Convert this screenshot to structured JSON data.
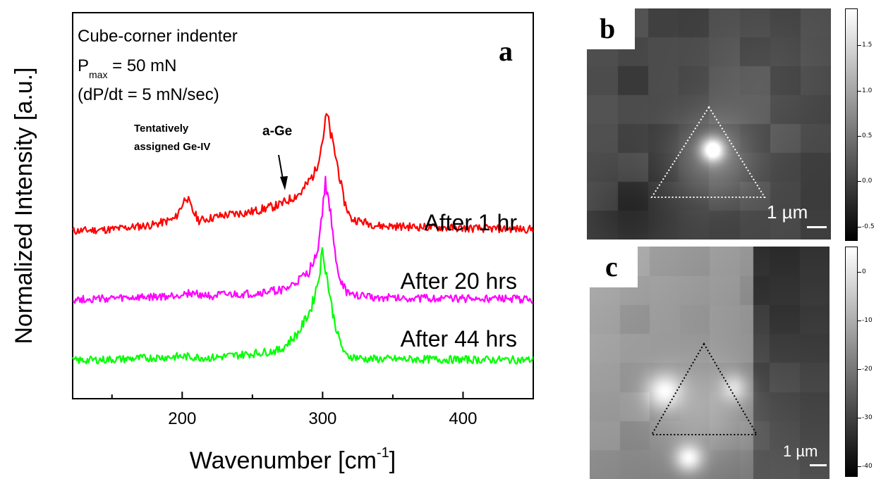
{
  "chart_data": [
    {
      "type": "line",
      "panel_label": "a",
      "xlabel": "Wavenumber [cm",
      "xlabel_sup": "-1",
      "xlabel_tail": "]",
      "ylabel": "Normalized Intensity [a.u.]",
      "xlim": [
        122,
        450
      ],
      "x_ticks": [
        200,
        300,
        400
      ],
      "x_tick_labels": [
        "200",
        "300",
        "400"
      ],
      "annotations": {
        "line1": "Cube-corner indenter",
        "pmax_p": "P",
        "pmax_sub": "max",
        "pmax_rest": " = 50 mN",
        "rate": "(dP/dt = 5 mN/sec)",
        "tentative1": "Tentatively",
        "tentative2": "assigned  Ge-IV",
        "age": "a-Ge"
      },
      "series": [
        {
          "name": "After 1 hr",
          "color": "#ff0000",
          "peaks": [
            {
              "x": 203,
              "height": 1.0
            },
            {
              "x": 303,
              "height": 3.35
            }
          ],
          "points": [
            [
              122,
              0.0
            ],
            [
              150,
              0.05
            ],
            [
              180,
              0.18
            ],
            [
              195,
              0.35
            ],
            [
              200,
              0.75
            ],
            [
              203,
              1.0
            ],
            [
              207,
              0.6
            ],
            [
              212,
              0.3
            ],
            [
              230,
              0.45
            ],
            [
              250,
              0.55
            ],
            [
              270,
              0.75
            ],
            [
              285,
              1.1
            ],
            [
              295,
              1.7
            ],
            [
              300,
              2.6
            ],
            [
              303,
              3.35
            ],
            [
              306,
              2.7
            ],
            [
              310,
              2.0
            ],
            [
              315,
              0.9
            ],
            [
              320,
              0.35
            ],
            [
              340,
              0.15
            ],
            [
              400,
              0.08
            ],
            [
              450,
              0.05
            ]
          ]
        },
        {
          "name": "After 20 hrs",
          "color": "#ff00ff",
          "peaks": [
            {
              "x": 302,
              "height": 3.3
            }
          ],
          "points": [
            [
              122,
              0.0
            ],
            [
              160,
              0.03
            ],
            [
              190,
              0.08
            ],
            [
              205,
              0.18
            ],
            [
              220,
              0.1
            ],
            [
              250,
              0.15
            ],
            [
              275,
              0.3
            ],
            [
              290,
              0.75
            ],
            [
              297,
              1.5
            ],
            [
              300,
              2.6
            ],
            [
              302,
              3.3
            ],
            [
              305,
              2.7
            ],
            [
              308,
              1.5
            ],
            [
              312,
              0.6
            ],
            [
              318,
              0.15
            ],
            [
              340,
              0.05
            ],
            [
              400,
              0.02
            ],
            [
              450,
              0.0
            ]
          ]
        },
        {
          "name": "After 44 hrs",
          "color": "#00ff00",
          "peaks": [
            {
              "x": 300,
              "height": 3.15
            }
          ],
          "points": [
            [
              122,
              0.0
            ],
            [
              160,
              0.05
            ],
            [
              200,
              0.12
            ],
            [
              220,
              0.08
            ],
            [
              250,
              0.2
            ],
            [
              270,
              0.3
            ],
            [
              283,
              0.8
            ],
            [
              292,
              1.5
            ],
            [
              297,
              2.3
            ],
            [
              300,
              3.15
            ],
            [
              303,
              2.4
            ],
            [
              307,
              1.4
            ],
            [
              311,
              0.7
            ],
            [
              316,
              0.15
            ],
            [
              330,
              0.05
            ],
            [
              400,
              0.03
            ],
            [
              450,
              0.02
            ]
          ]
        }
      ]
    },
    {
      "type": "heatmap",
      "panel_label": "b",
      "scale_bar": "1 µm",
      "colorbar_ticks": [
        -0.5,
        0.0,
        0.5,
        1.0,
        1.5
      ],
      "colorbar_tick_labels": [
        "-0.5",
        "0.0",
        "0.5",
        "1.0",
        "1.5"
      ],
      "colorbar_range": [
        -0.65,
        1.9
      ],
      "triangle_color": "#ffffff"
    },
    {
      "type": "heatmap",
      "panel_label": "c",
      "scale_bar": "1 µm",
      "colorbar_ticks": [
        -40,
        -30,
        -20,
        -10,
        0
      ],
      "colorbar_tick_labels": [
        "-40",
        "-30",
        "-20",
        "-10",
        "0"
      ],
      "colorbar_range": [
        -42,
        5
      ],
      "triangle_color": "#000000"
    }
  ]
}
